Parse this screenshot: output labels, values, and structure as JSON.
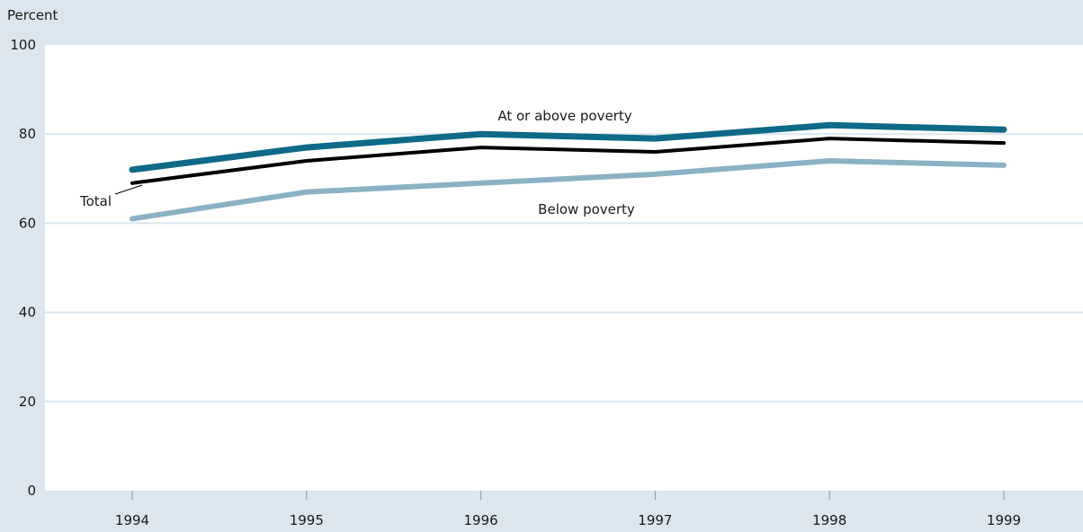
{
  "chart_data": {
    "type": "line",
    "title": "",
    "xlabel": "",
    "ylabel": "Percent",
    "x": [
      "1994",
      "1995",
      "1996",
      "1997",
      "1998",
      "1999"
    ],
    "ylim": [
      0,
      100
    ],
    "yticks": [
      0,
      20,
      40,
      60,
      80,
      100
    ],
    "grid": true,
    "series": [
      {
        "name": "At or above poverty",
        "values": [
          72,
          77,
          80,
          79,
          82,
          81
        ],
        "color": "#0e6a87"
      },
      {
        "name": "Total",
        "values": [
          69,
          74,
          77,
          76,
          79,
          78
        ],
        "color": "#000000"
      },
      {
        "name": "Below poverty",
        "values": [
          61,
          67,
          69,
          71,
          74,
          73
        ],
        "color": "#8bb2c4"
      }
    ]
  }
}
